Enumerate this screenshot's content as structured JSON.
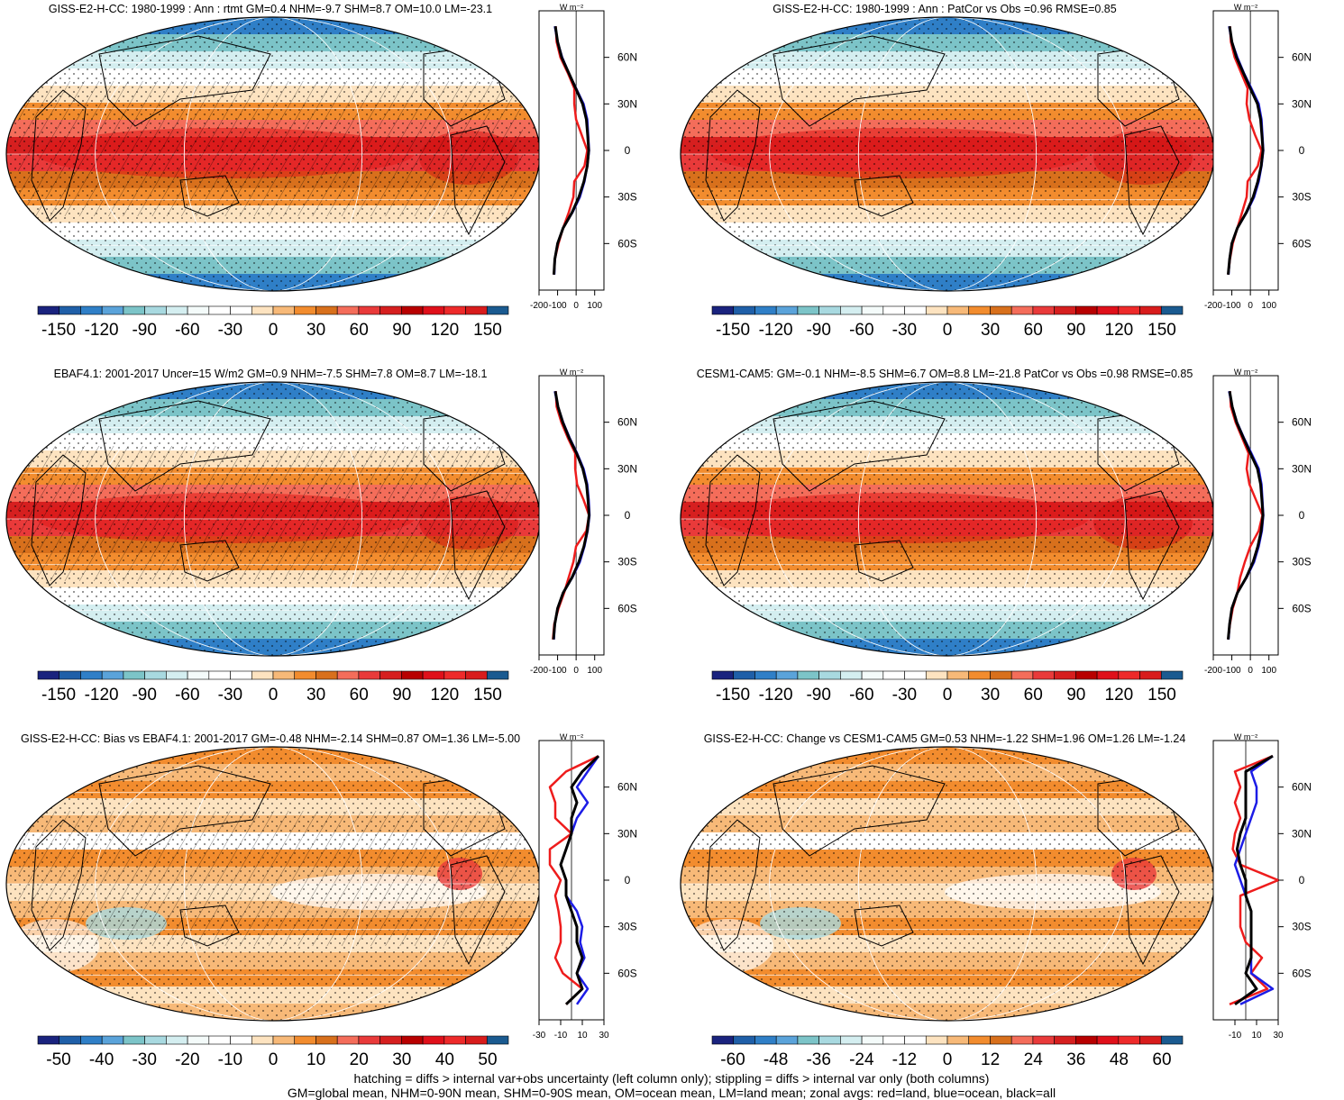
{
  "panels": [
    {
      "id": "p1",
      "title": "GISS-E2-H-CC: 1980-1999 : Ann : rtmt GM=0.4 NHM=-9.7 SHM=8.7 OM=10.0 LM=-23.1",
      "palette": "main",
      "hatching": true,
      "colorbar_ticks": [
        "-150",
        "-120",
        "-90",
        "-60",
        "-30",
        "0",
        "30",
        "60",
        "90",
        "120",
        "150"
      ],
      "zonal_ticks": [
        "-200",
        "-100",
        "0",
        "100"
      ],
      "zonal_unit": "W m⁻²",
      "lat_ticks": [
        "60N",
        "30N",
        "0",
        "30S",
        "60S"
      ]
    },
    {
      "id": "p2",
      "title": "GISS-E2-H-CC: 1980-1999 : Ann : PatCor vs Obs =0.96 RMSE=0.85",
      "palette": "main",
      "hatching": false,
      "colorbar_ticks": [
        "-150",
        "-120",
        "-90",
        "-60",
        "-30",
        "0",
        "30",
        "60",
        "90",
        "120",
        "150"
      ],
      "zonal_ticks": [
        "-200",
        "-100",
        "0",
        "100"
      ],
      "zonal_unit": "W m⁻²",
      "lat_ticks": [
        "60N",
        "30N",
        "0",
        "30S",
        "60S"
      ]
    },
    {
      "id": "p3",
      "title": "EBAF4.1: 2001-2017 Uncer=15 W/m2 GM=0.9 NHM=-7.5 SHM=7.8 OM=8.7 LM=-18.1",
      "palette": "main",
      "hatching": true,
      "colorbar_ticks": [
        "-150",
        "-120",
        "-90",
        "-60",
        "-30",
        "0",
        "30",
        "60",
        "90",
        "120",
        "150"
      ],
      "zonal_ticks": [
        "-200",
        "-100",
        "0",
        "100"
      ],
      "zonal_unit": "W m⁻²",
      "lat_ticks": [
        "60N",
        "30N",
        "0",
        "30S",
        "60S"
      ]
    },
    {
      "id": "p4",
      "title": "CESM1-CAM5: GM=-0.1 NHM=-8.5 SHM=6.7 OM=8.8 LM=-21.8 PatCor vs Obs =0.98 RMSE=0.85",
      "palette": "main",
      "hatching": false,
      "colorbar_ticks": [
        "-150",
        "-120",
        "-90",
        "-60",
        "-30",
        "0",
        "30",
        "60",
        "90",
        "120",
        "150"
      ],
      "zonal_ticks": [
        "-200",
        "-100",
        "0",
        "100"
      ],
      "zonal_unit": "W m⁻²",
      "lat_ticks": [
        "60N",
        "30N",
        "0",
        "30S",
        "60S"
      ]
    },
    {
      "id": "p5",
      "title": "GISS-E2-H-CC: Bias vs EBAF4.1: 2001-2017 GM=-0.48 NHM=-2.14 SHM=0.87 OM=1.36 LM=-5.00",
      "palette": "diff",
      "hatching": true,
      "colorbar_ticks": [
        "-50",
        "-40",
        "-30",
        "-20",
        "-10",
        "0",
        "10",
        "20",
        "30",
        "40",
        "50"
      ],
      "zonal_ticks": [
        "-30",
        "-10",
        "10",
        "30"
      ],
      "zonal_unit": "W m⁻²",
      "lat_ticks": [
        "60N",
        "30N",
        "0",
        "30S",
        "60S"
      ]
    },
    {
      "id": "p6",
      "title": "GISS-E2-H-CC: Change vs CESM1-CAM5 GM=0.53 NHM=-1.22 SHM=1.96 OM=1.26 LM=-1.24",
      "palette": "diff",
      "hatching": false,
      "colorbar_ticks": [
        "-60",
        "-48",
        "-36",
        "-24",
        "-12",
        "0",
        "12",
        "24",
        "36",
        "48",
        "60"
      ],
      "zonal_ticks": [
        "-10",
        "10",
        "30"
      ],
      "zonal_unit": "W m⁻²",
      "lat_ticks": [
        "60N",
        "30N",
        "0",
        "30S",
        "60S"
      ]
    }
  ],
  "palettes": {
    "main": [
      "#1a237e",
      "#1f5fa8",
      "#2f7fc7",
      "#5aa3da",
      "#7cc4c8",
      "#a8d9e0",
      "#d4eef0",
      "#f4fbfa",
      "#ffffff",
      "#ffffff",
      "#fde3c0",
      "#f7b978",
      "#f28c2e",
      "#d8701c",
      "#f46d5a",
      "#e93a3a",
      "#d61f1f",
      "#b80000",
      "#e0101a",
      "#ee2a2a",
      "#d81c1c",
      "#1a5a90"
    ],
    "diff": [
      "#1a237e",
      "#1f5fa8",
      "#2f7fc7",
      "#5aa3da",
      "#7cc4c8",
      "#a8d9e0",
      "#d4eef0",
      "#f4fbfa",
      "#ffffff",
      "#ffffff",
      "#fde3c0",
      "#f7b978",
      "#f28c2e",
      "#d8701c",
      "#f46d5a",
      "#e93a3a",
      "#d61f1f",
      "#b80000",
      "#e0101a",
      "#ee2a2a",
      "#d81c1c",
      "#1a5a90"
    ]
  },
  "line_colors": {
    "land": "#ee1c1c",
    "ocean": "#1c1ce6",
    "all": "#000000"
  },
  "caption": {
    "line1": "hatching = diffs > internal var+obs uncertainty (left column only); stippling = diffs > internal var only (both columns)",
    "line2": "GM=global mean, NHM=0-90N mean, SHM=0-90S mean, OM=ocean mean, LM=land mean; zonal avgs: red=land, blue=ocean, black=all"
  },
  "chart_data": [
    {
      "type": "line",
      "panel": "p1",
      "xlabel": "W m⁻²",
      "lat": [
        80,
        70,
        60,
        50,
        40,
        30,
        20,
        10,
        0,
        -10,
        -20,
        -30,
        -40,
        -50,
        -60,
        -70,
        -80
      ],
      "series": [
        {
          "name": "red=land",
          "values": [
            -110,
            -105,
            -85,
            -45,
            -10,
            -10,
            0,
            30,
            60,
            45,
            -10,
            -15,
            -40,
            -70,
            -95,
            -115,
            -120
          ]
        },
        {
          "name": "blue=ocean",
          "values": [
            -115,
            -100,
            -75,
            -40,
            0,
            40,
            60,
            65,
            70,
            60,
            45,
            20,
            -20,
            -70,
            -100,
            -115,
            -118
          ]
        },
        {
          "name": "black=all",
          "values": [
            -112,
            -100,
            -78,
            -40,
            -2,
            35,
            55,
            62,
            68,
            60,
            42,
            15,
            -22,
            -70,
            -100,
            -115,
            -120
          ]
        }
      ]
    },
    {
      "type": "line",
      "panel": "p2",
      "xlabel": "W m⁻²",
      "lat": [
        80,
        70,
        60,
        50,
        40,
        30,
        20,
        10,
        0,
        -10,
        -20,
        -30,
        -40,
        -50,
        -60,
        -70,
        -80
      ],
      "series": [
        {
          "name": "red=land",
          "values": [
            -110,
            -105,
            -85,
            -50,
            -15,
            -20,
            -5,
            25,
            60,
            40,
            -15,
            -20,
            -45,
            -70,
            -95,
            -110,
            -120
          ]
        },
        {
          "name": "blue=ocean",
          "values": [
            -115,
            -100,
            -70,
            -35,
            5,
            45,
            60,
            65,
            70,
            60,
            45,
            20,
            -20,
            -70,
            -100,
            -112,
            -118
          ]
        },
        {
          "name": "black=all",
          "values": [
            -112,
            -100,
            -75,
            -38,
            0,
            38,
            55,
            62,
            68,
            58,
            40,
            15,
            -22,
            -70,
            -100,
            -112,
            -120
          ]
        }
      ]
    },
    {
      "type": "line",
      "panel": "p3",
      "xlabel": "W m⁻²",
      "lat": [
        80,
        70,
        60,
        50,
        40,
        30,
        20,
        10,
        0,
        -10,
        -20,
        -30,
        -40,
        -50,
        -60,
        -70,
        -80
      ],
      "series": [
        {
          "name": "red=land",
          "values": [
            -110,
            -105,
            -80,
            -45,
            -5,
            -5,
            5,
            40,
            70,
            55,
            0,
            -15,
            -40,
            -65,
            -95,
            -118,
            -125
          ]
        },
        {
          "name": "blue=ocean",
          "values": [
            -115,
            -98,
            -70,
            -35,
            5,
            40,
            60,
            68,
            72,
            62,
            45,
            20,
            -20,
            -70,
            -100,
            -115,
            -120
          ]
        },
        {
          "name": "black=all",
          "values": [
            -112,
            -98,
            -72,
            -38,
            2,
            36,
            56,
            64,
            70,
            60,
            42,
            15,
            -22,
            -70,
            -100,
            -115,
            -122
          ]
        }
      ]
    },
    {
      "type": "line",
      "panel": "p4",
      "xlabel": "W m⁻²",
      "lat": [
        80,
        70,
        60,
        50,
        40,
        30,
        20,
        10,
        0,
        -10,
        -20,
        -30,
        -40,
        -50,
        -60,
        -70,
        -80
      ],
      "series": [
        {
          "name": "red=land",
          "values": [
            -110,
            -105,
            -80,
            -45,
            -10,
            -20,
            -5,
            30,
            65,
            45,
            0,
            -30,
            -55,
            -70,
            -95,
            -110,
            -120
          ]
        },
        {
          "name": "blue=ocean",
          "values": [
            -115,
            -98,
            -72,
            -35,
            5,
            45,
            60,
            65,
            70,
            62,
            45,
            20,
            -20,
            -70,
            -100,
            -112,
            -118
          ]
        },
        {
          "name": "black=all",
          "values": [
            -112,
            -98,
            -74,
            -38,
            0,
            38,
            55,
            62,
            68,
            58,
            40,
            15,
            -22,
            -70,
            -100,
            -112,
            -120
          ]
        }
      ]
    },
    {
      "type": "line",
      "panel": "p5",
      "xlabel": "W m⁻²",
      "lat": [
        80,
        70,
        60,
        50,
        40,
        30,
        20,
        10,
        0,
        -10,
        -20,
        -30,
        -40,
        -50,
        -60,
        -70,
        -80
      ],
      "series": [
        {
          "name": "red=land",
          "values": [
            25,
            -5,
            -20,
            -15,
            -15,
            0,
            -20,
            -20,
            -10,
            -15,
            -12,
            -10,
            -10,
            -15,
            -8,
            10,
            -5
          ]
        },
        {
          "name": "blue=ocean",
          "values": [
            25,
            15,
            5,
            15,
            5,
            0,
            -5,
            -10,
            -5,
            -5,
            5,
            10,
            8,
            12,
            5,
            15,
            5
          ]
        },
        {
          "name": "black=all",
          "values": [
            25,
            10,
            0,
            5,
            0,
            0,
            -5,
            -10,
            -5,
            -5,
            0,
            5,
            5,
            10,
            5,
            10,
            -5
          ]
        }
      ]
    },
    {
      "type": "line",
      "panel": "p6",
      "xlabel": "W m⁻²",
      "lat": [
        80,
        70,
        60,
        50,
        40,
        30,
        20,
        10,
        0,
        -10,
        -20,
        -30,
        -40,
        -50,
        -60,
        -70,
        -80
      ],
      "series": [
        {
          "name": "red=land",
          "values": [
            25,
            -10,
            -5,
            -10,
            -5,
            -10,
            -12,
            -5,
            30,
            -5,
            -5,
            -5,
            0,
            15,
            5,
            20,
            -15
          ]
        },
        {
          "name": "blue=ocean",
          "values": [
            25,
            5,
            10,
            10,
            5,
            0,
            -5,
            -10,
            -5,
            0,
            5,
            5,
            5,
            5,
            5,
            25,
            -5
          ]
        },
        {
          "name": "black=all",
          "values": [
            25,
            0,
            0,
            0,
            0,
            -5,
            -8,
            -5,
            0,
            0,
            5,
            5,
            5,
            5,
            0,
            10,
            -10
          ]
        }
      ]
    }
  ]
}
